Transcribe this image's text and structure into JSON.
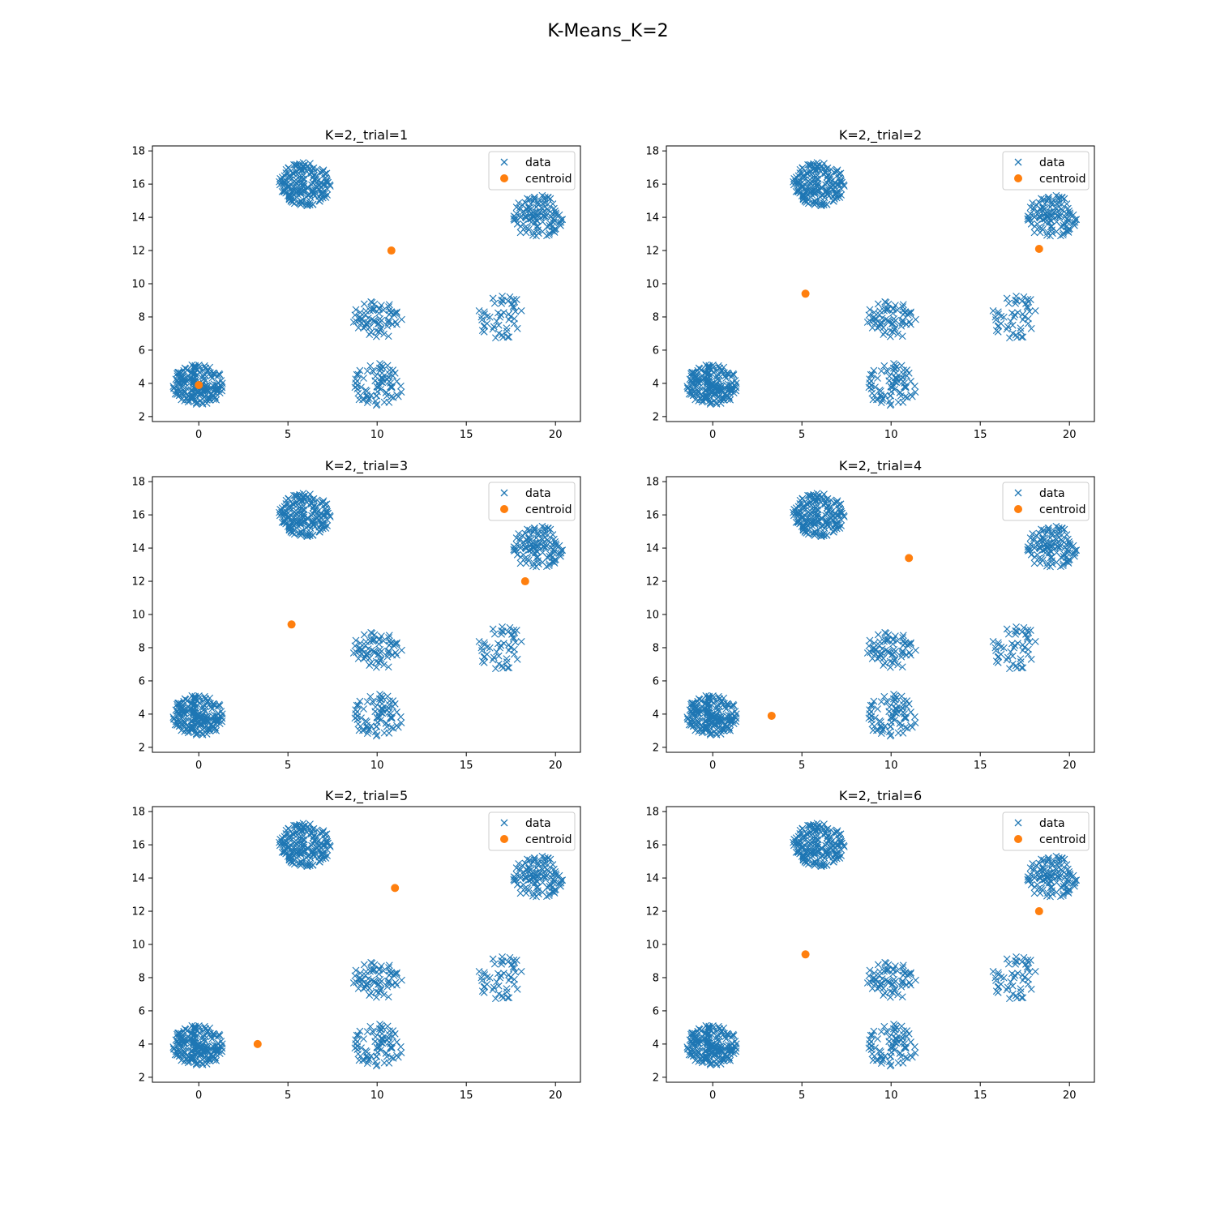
{
  "figure": {
    "title": "K-Means_K=2"
  },
  "colors": {
    "data": "#1f77b4",
    "centroid": "#ff7f0e",
    "axis": "#000000",
    "legend_border": "#cccccc"
  },
  "chart_data": [
    {
      "type": "scatter",
      "title": "K=2,_trial=1",
      "xlim": [
        -2.6,
        21.4
      ],
      "ylim": [
        1.7,
        18.3
      ],
      "xticks": [
        0,
        5,
        10,
        15,
        20
      ],
      "yticks": [
        2,
        4,
        6,
        8,
        10,
        12,
        14,
        16,
        18
      ],
      "legend": {
        "position": "upper right",
        "entries": [
          "data",
          "centroid"
        ]
      },
      "series": [
        {
          "name": "centroid",
          "marker": "o",
          "x": [
            0.0,
            10.8
          ],
          "y": [
            3.9,
            12.0
          ]
        }
      ]
    },
    {
      "type": "scatter",
      "title": "K=2,_trial=2",
      "xlim": [
        -2.6,
        21.4
      ],
      "ylim": [
        1.7,
        18.3
      ],
      "xticks": [
        0,
        5,
        10,
        15,
        20
      ],
      "yticks": [
        2,
        4,
        6,
        8,
        10,
        12,
        14,
        16,
        18
      ],
      "legend": {
        "position": "upper right",
        "entries": [
          "data",
          "centroid"
        ]
      },
      "series": [
        {
          "name": "centroid",
          "marker": "o",
          "x": [
            5.2,
            18.3
          ],
          "y": [
            9.4,
            12.1
          ]
        }
      ]
    },
    {
      "type": "scatter",
      "title": "K=2,_trial=3",
      "xlim": [
        -2.6,
        21.4
      ],
      "ylim": [
        1.7,
        18.3
      ],
      "xticks": [
        0,
        5,
        10,
        15,
        20
      ],
      "yticks": [
        2,
        4,
        6,
        8,
        10,
        12,
        14,
        16,
        18
      ],
      "legend": {
        "position": "upper right",
        "entries": [
          "data",
          "centroid"
        ]
      },
      "series": [
        {
          "name": "centroid",
          "marker": "o",
          "x": [
            5.2,
            18.3
          ],
          "y": [
            9.4,
            12.0
          ]
        }
      ]
    },
    {
      "type": "scatter",
      "title": "K=2,_trial=4",
      "xlim": [
        -2.6,
        21.4
      ],
      "ylim": [
        1.7,
        18.3
      ],
      "xticks": [
        0,
        5,
        10,
        15,
        20
      ],
      "yticks": [
        2,
        4,
        6,
        8,
        10,
        12,
        14,
        16,
        18
      ],
      "legend": {
        "position": "upper right",
        "entries": [
          "data",
          "centroid"
        ]
      },
      "series": [
        {
          "name": "centroid",
          "marker": "o",
          "x": [
            3.3,
            11.0
          ],
          "y": [
            3.9,
            13.4
          ]
        }
      ]
    },
    {
      "type": "scatter",
      "title": "K=2,_trial=5",
      "xlim": [
        -2.6,
        21.4
      ],
      "ylim": [
        1.7,
        18.3
      ],
      "xticks": [
        0,
        5,
        10,
        15,
        20
      ],
      "yticks": [
        2,
        4,
        6,
        8,
        10,
        12,
        14,
        16,
        18
      ],
      "legend": {
        "position": "upper right",
        "entries": [
          "data",
          "centroid"
        ]
      },
      "series": [
        {
          "name": "centroid",
          "marker": "o",
          "x": [
            3.3,
            11.0
          ],
          "y": [
            4.0,
            13.4
          ]
        }
      ]
    },
    {
      "type": "scatter",
      "title": "K=2,_trial=6",
      "xlim": [
        -2.6,
        21.4
      ],
      "ylim": [
        1.7,
        18.3
      ],
      "xticks": [
        0,
        5,
        10,
        15,
        20
      ],
      "yticks": [
        2,
        4,
        6,
        8,
        10,
        12,
        14,
        16,
        18
      ],
      "legend": {
        "position": "upper right",
        "entries": [
          "data",
          "centroid"
        ]
      },
      "series": [
        {
          "name": "centroid",
          "marker": "o",
          "x": [
            5.2,
            18.3
          ],
          "y": [
            9.4,
            12.0
          ]
        }
      ]
    }
  ],
  "data_clusters": [
    {
      "center_x": 0.0,
      "center_y": 3.9,
      "radius_x": 1.5,
      "radius_y": 1.25,
      "count": 200
    },
    {
      "center_x": 6.0,
      "center_y": 16.0,
      "radius_x": 1.5,
      "radius_y": 1.3,
      "count": 200
    },
    {
      "center_x": 19.0,
      "center_y": 14.0,
      "radius_x": 1.4,
      "radius_y": 1.35,
      "count": 120
    },
    {
      "center_x": 10.0,
      "center_y": 7.9,
      "radius_x": 1.4,
      "radius_y": 1.2,
      "count": 70
    },
    {
      "center_x": 10.0,
      "center_y": 3.9,
      "radius_x": 1.5,
      "radius_y": 1.3,
      "count": 80
    },
    {
      "center_x": 17.0,
      "center_y": 8.0,
      "radius_x": 1.4,
      "radius_y": 1.3,
      "count": 50
    }
  ]
}
